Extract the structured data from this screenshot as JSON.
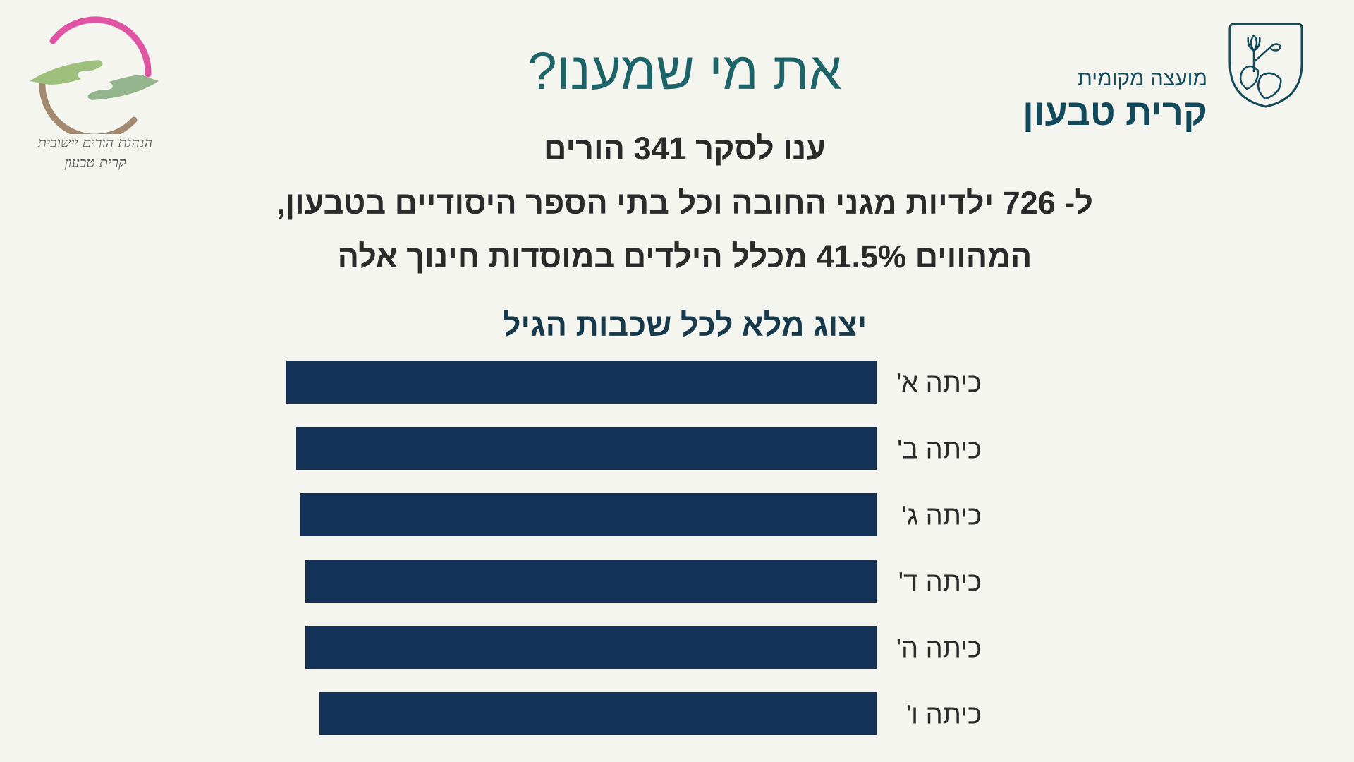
{
  "header": {
    "title": "את מי שמענו?",
    "line1": "ענו לסקר 341 הורים",
    "line2": "ל- 726 ילדיות מגני החובה וכל בתי הספר היסודיים בטבעון,",
    "line3": "המהווים 41.5% מכלל הילדים במוסדות חינוך אלה"
  },
  "logos": {
    "council_small": "מועצה מקומית",
    "council_big": "קרית טבעון",
    "parents_line1": "הנהגת הורים יישובית",
    "parents_line2": "קרית טבעון"
  },
  "colors": {
    "bar": "#143158",
    "title": "#1d6468",
    "background": "#f5f5f0"
  },
  "chart_data": {
    "type": "bar",
    "orientation": "horizontal",
    "title": "יצוג מלא לכל שכבות הגיל",
    "categories": [
      "כיתה א'",
      "כיתה ב'",
      "כיתה ג'",
      "כיתה ד'",
      "כיתה ה'",
      "כיתה ו'"
    ],
    "values": [
      100,
      98.3,
      97.6,
      96.8,
      96.8,
      94.4
    ],
    "xlabel": "",
    "ylabel": "",
    "xlim": [
      0,
      100
    ],
    "grid": false,
    "legend": "none"
  }
}
